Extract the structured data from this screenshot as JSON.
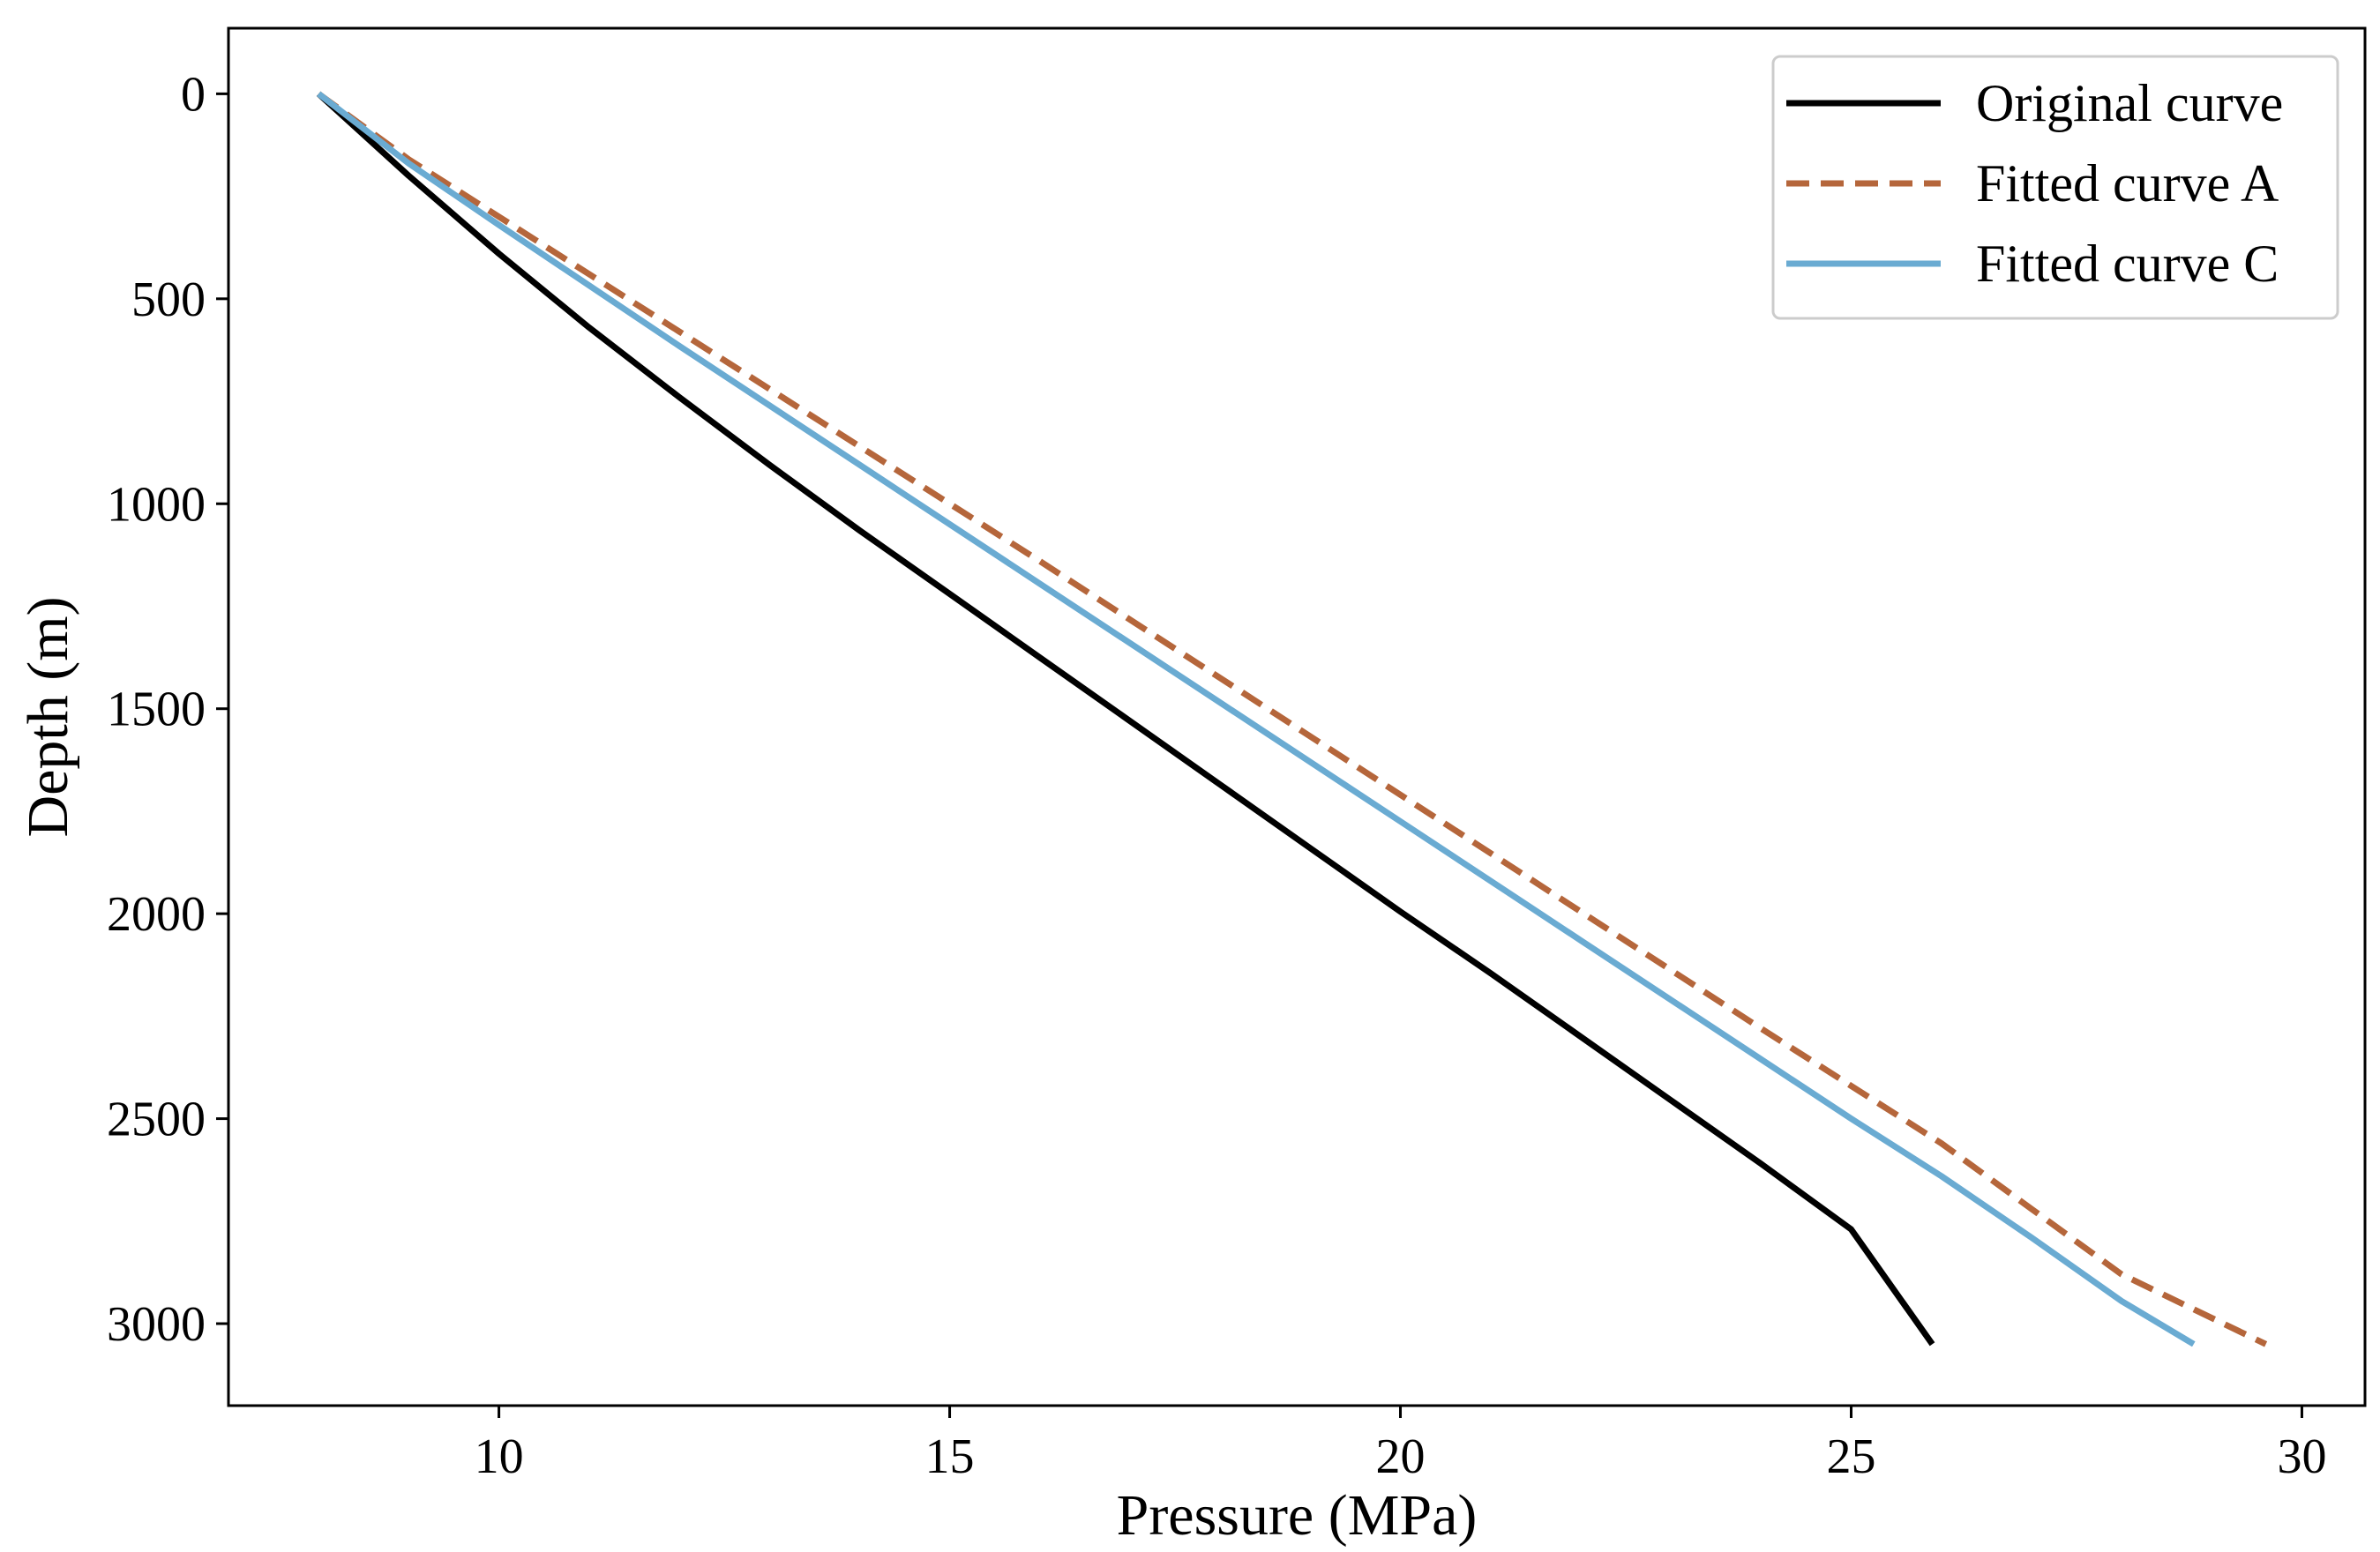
{
  "chart_data": {
    "type": "line",
    "title": "",
    "xlabel": "Pressure (MPa)",
    "ylabel": "Depth (m)",
    "xlim": [
      7,
      30.7
    ],
    "ylim": [
      3200,
      -160
    ],
    "y_inverted": true,
    "grid": false,
    "legend_position": "top-right",
    "xticks": [
      10,
      15,
      20,
      25,
      30
    ],
    "yticks": [
      0,
      500,
      1000,
      1500,
      2000,
      2500,
      3000
    ],
    "series": [
      {
        "name": "Original curve",
        "color": "#000000",
        "style": "solid",
        "x": [
          8.0,
          9.0,
          10.0,
          11.0,
          12.0,
          13.0,
          14.0,
          15.0,
          16.0,
          17.0,
          18.0,
          19.0,
          20.0,
          21.0,
          22.0,
          23.0,
          24.0,
          25.0,
          25.9
        ],
        "y": [
          0,
          200,
          390,
          570,
          740,
          905,
          1065,
          1220,
          1375,
          1530,
          1685,
          1840,
          1995,
          2145,
          2300,
          2455,
          2610,
          2770,
          3050
        ]
      },
      {
        "name": "Fitted curve A",
        "color": "#b5663b",
        "style": "dashed",
        "x": [
          8.0,
          9.0,
          10.0,
          12.0,
          14.0,
          16.0,
          18.0,
          20.0,
          22.0,
          24.0,
          25.0,
          26.0,
          27.0,
          28.0,
          29.6
        ],
        "y": [
          0,
          160,
          300,
          580,
          860,
          1140,
          1425,
          1710,
          1995,
          2280,
          2420,
          2560,
          2720,
          2880,
          3050
        ]
      },
      {
        "name": "Fitted curve C",
        "color": "#6aabd2",
        "style": "solid",
        "x": [
          8.0,
          9.0,
          10.0,
          12.0,
          14.0,
          16.0,
          18.0,
          20.0,
          22.0,
          24.0,
          25.0,
          26.0,
          27.0,
          28.0,
          28.8
        ],
        "y": [
          0,
          170,
          320,
          615,
          905,
          1195,
          1485,
          1775,
          2065,
          2355,
          2500,
          2640,
          2790,
          2945,
          3050
        ]
      }
    ]
  }
}
